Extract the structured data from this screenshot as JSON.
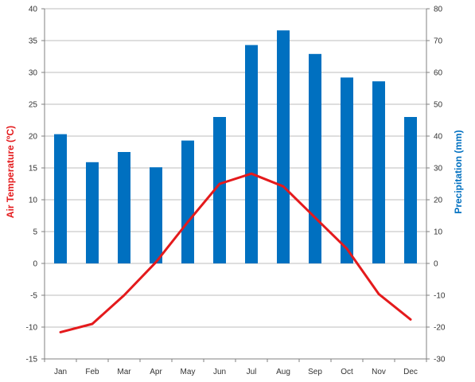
{
  "chart_data": {
    "type": "bar+line",
    "categories": [
      "Jan",
      "Feb",
      "Mar",
      "Apr",
      "May",
      "Jun",
      "Jul",
      "Aug",
      "Sep",
      "Oct",
      "Nov",
      "Dec"
    ],
    "series": [
      {
        "name": "Precipitation",
        "type": "bar",
        "axis": "right",
        "color": "#0070c0",
        "values": [
          40.6,
          31.8,
          35,
          30.2,
          38.6,
          46,
          68.6,
          73.2,
          65.8,
          58.4,
          57.2,
          46
        ]
      },
      {
        "name": "Air Temperature",
        "type": "line",
        "axis": "left",
        "color": "#e41a1c",
        "values": [
          -10.8,
          -9.5,
          -5,
          0.2,
          6.5,
          12.5,
          14.1,
          12.1,
          7.2,
          2.3,
          -4.8,
          -8.8
        ]
      }
    ],
    "y_left": {
      "label": "Air Temperature (ºC)",
      "range": [
        -15,
        40
      ],
      "ticks": [
        -15,
        -10,
        -5,
        0,
        5,
        10,
        15,
        20,
        25,
        30,
        35,
        40
      ],
      "color": "#e41a1c"
    },
    "y_right": {
      "label": "Precipitation (mm)",
      "range": [
        -30,
        80
      ],
      "ticks": [
        -30,
        -20,
        -10,
        0,
        10,
        20,
        30,
        40,
        50,
        60,
        70,
        80
      ],
      "color": "#0070c0"
    },
    "grid": true
  }
}
